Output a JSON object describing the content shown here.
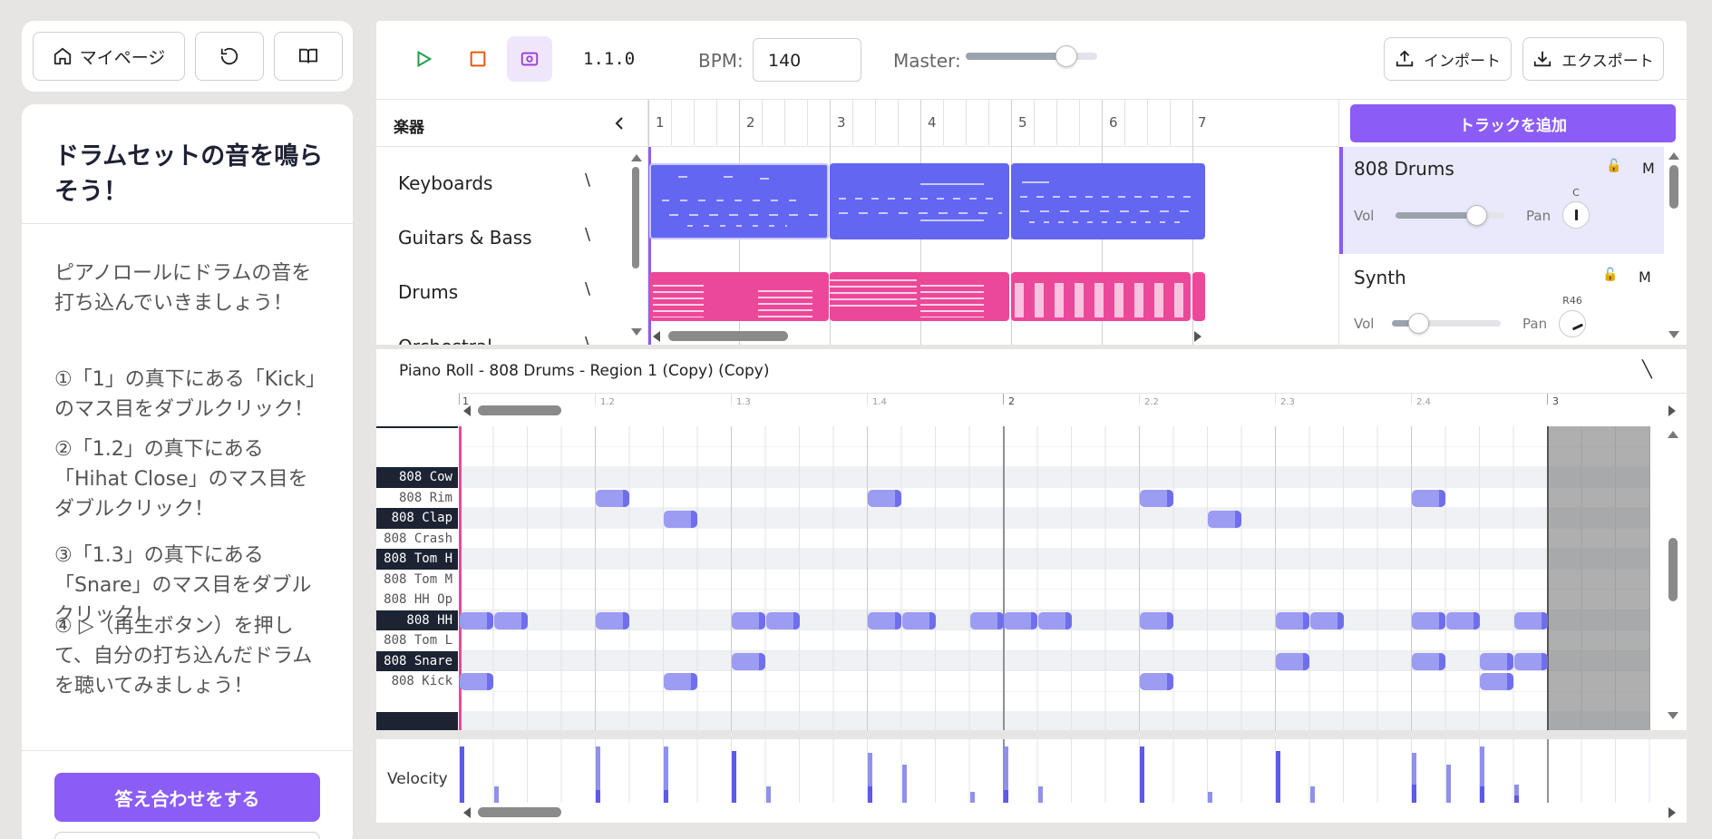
{
  "nav": {
    "mypage_label": "マイページ",
    "reset_icon": "rotate-ccw-icon",
    "book_icon": "book-open-icon",
    "home_icon": "home-icon"
  },
  "lesson": {
    "title": "ドラムセットの音を鳴らそう！",
    "intro": "ピアノロールにドラムの音を打ち込んでいきましょう！",
    "steps": [
      "①「1」の真下にある「Kick」のマス目をダブルクリック！",
      "②「1.2」の真下にある「Hihat Close」のマス目をダブルクリック！",
      "③「1.3」の真下にある「Snare」のマス目をダブルクリック！",
      "④ ▷（再生ボタン）を押して、自分の打ち込んだドラムを聴いてみましょう！"
    ],
    "check_button": "答え合わせをする"
  },
  "transport": {
    "position": "1.1.0",
    "bpm_label": "BPM:",
    "bpm_value": "140",
    "master_label": "Master:",
    "master_level": 0.75,
    "import_label": "インポート",
    "export_label": "エクスポート"
  },
  "instruments": {
    "header": "楽器",
    "add_track": "トラックを追加",
    "list": [
      "Keyboards",
      "Guitars & Bass",
      "Drums",
      "Orchestral"
    ]
  },
  "timeline": {
    "ruler": [
      "1",
      "2",
      "3",
      "4",
      "5",
      "6",
      "7"
    ]
  },
  "tracks": [
    {
      "name": "808 Drums",
      "vol_label": "Vol",
      "pan_label": "Pan",
      "pan_value": "C",
      "mute": "M",
      "volume": 0.75
    },
    {
      "name": "Synth",
      "vol_label": "Vol",
      "pan_label": "Pan",
      "pan_value": "R46",
      "mute": "M",
      "volume": 0.25
    }
  ],
  "piano_roll": {
    "title": "Piano Roll - 808 Drums - Region 1 (Copy) (Copy)",
    "keys": [
      "",
      "",
      "808 Cow",
      "808 Rim",
      "808 Clap",
      "808 Crash",
      "808 Tom H",
      "808 Tom M",
      "808 HH Op",
      "808 HH",
      "808 Tom L",
      "808 Snare",
      "808 Kick",
      "",
      ""
    ],
    "ruler": [
      "1",
      "1.2",
      "1.3",
      "1.4",
      "2",
      "2.2",
      "2.3",
      "2.4",
      "3"
    ],
    "velocity_label": "Velocity"
  },
  "colors": {
    "accent": "#8b5cf6",
    "track_blue": "#6366f1",
    "track_pink": "#ec4899"
  }
}
